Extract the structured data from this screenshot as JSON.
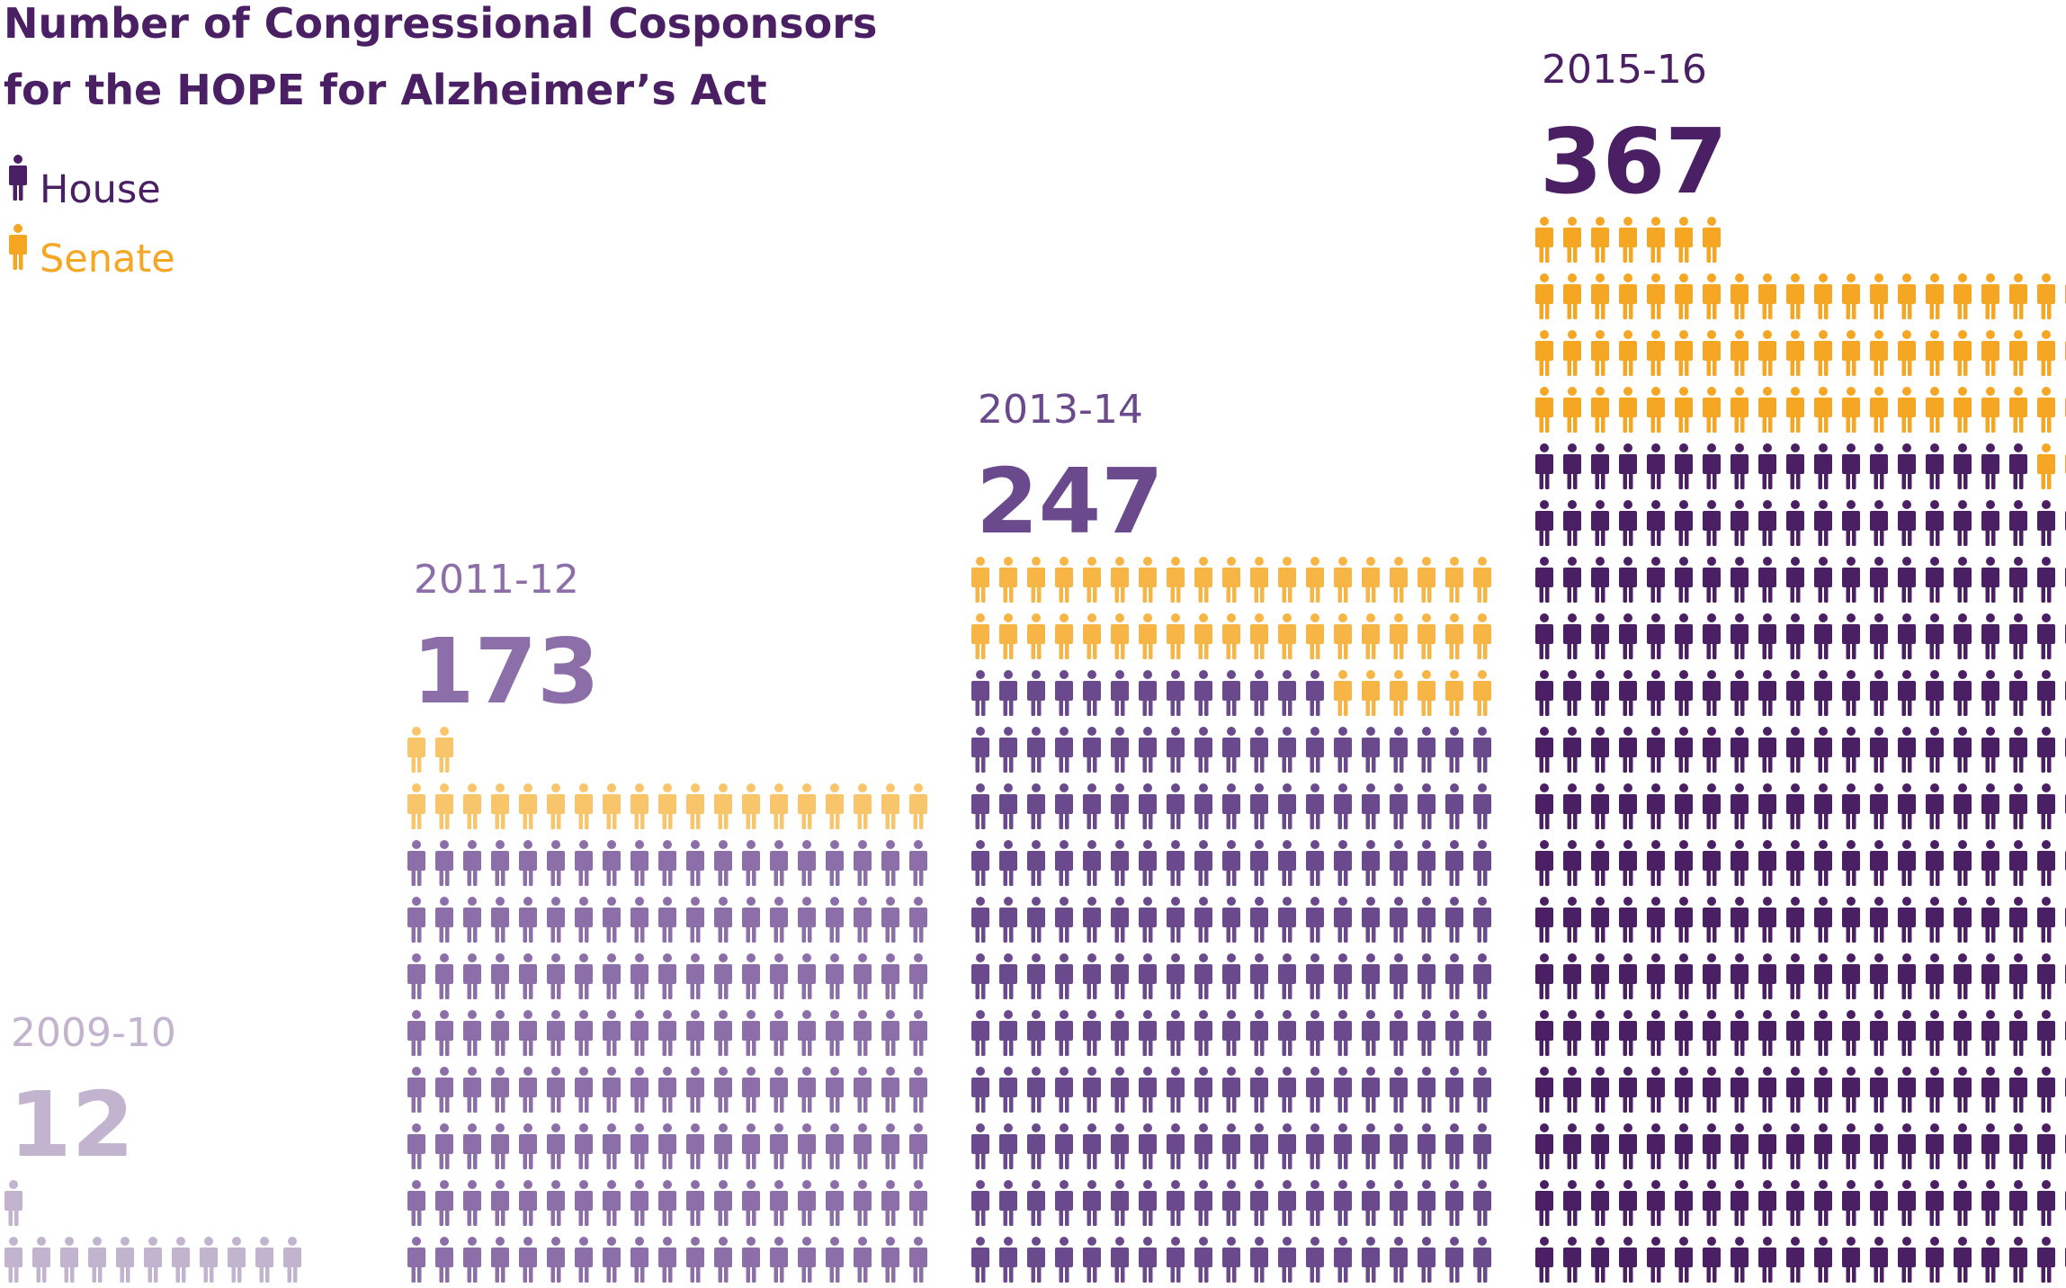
{
  "chart_data": {
    "type": "pictogram-stacked-bar",
    "title_lines": [
      "Number of Congressional Cosponsors",
      "for the HOPE for Alzheimer’s Act"
    ],
    "legend": [
      {
        "name": "House",
        "color": "#4a1f63",
        "icon": "person-icon"
      },
      {
        "name": "Senate",
        "color": "#f5a623",
        "icon": "person-icon"
      }
    ],
    "categories": [
      "2009-10",
      "2011-12",
      "2013-14",
      "2015-16"
    ],
    "totals": [
      12,
      173,
      247,
      367
    ],
    "series": [
      {
        "name": "House",
        "values": [
          12,
          152,
          203,
          298
        ]
      },
      {
        "name": "Senate",
        "values": [
          0,
          21,
          44,
          69
        ]
      }
    ],
    "icons_per_row": [
      11,
      19,
      19,
      20
    ],
    "group_colors": {
      "house": [
        "#c2b3ce",
        "#8c6ea8",
        "#6a4a8c",
        "#4a1f63"
      ],
      "senate": [
        "#f5a623",
        "#f9c56a",
        "#f6b545",
        "#f5a623"
      ]
    }
  }
}
